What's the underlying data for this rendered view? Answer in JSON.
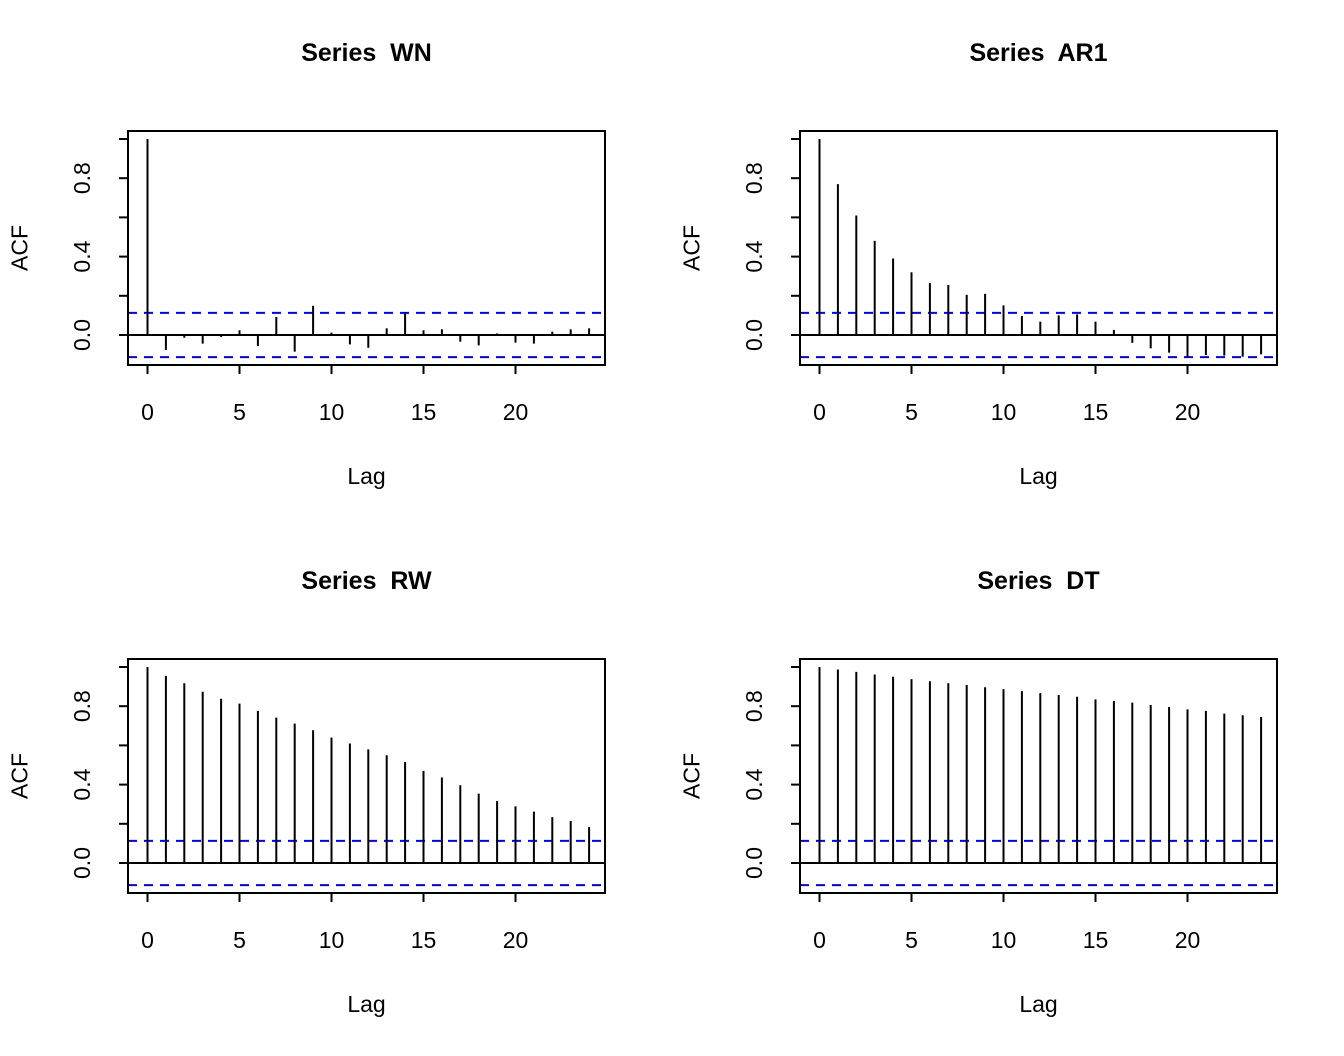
{
  "figure": {
    "background": "#ffffff",
    "bar_color": "#000000",
    "axis_color": "#000000",
    "conf_color": "#0000ff"
  },
  "chart_data": [
    {
      "type": "bar",
      "title": "Series  WN",
      "xlabel": "Lag",
      "ylabel": "ACF",
      "legend": "none",
      "grid": false,
      "x": [
        0,
        1,
        2,
        3,
        4,
        5,
        6,
        7,
        8,
        9,
        10,
        11,
        12,
        13,
        14,
        15,
        16,
        17,
        18,
        19,
        20,
        21,
        22,
        23,
        24
      ],
      "values": [
        1.0,
        -0.076,
        -0.014,
        -0.044,
        -0.01,
        0.024,
        -0.056,
        0.092,
        -0.085,
        0.149,
        0.012,
        -0.048,
        -0.065,
        0.034,
        0.114,
        0.024,
        0.029,
        -0.034,
        -0.053,
        0.008,
        -0.039,
        -0.044,
        0.017,
        0.029,
        0.034
      ],
      "conf_level_lines": [
        0.113,
        -0.113
      ],
      "xlim": [
        0,
        24
      ],
      "ylim": [
        -0.15,
        1.04
      ],
      "x_ticks": [
        {
          "v": 0,
          "label": "0"
        },
        {
          "v": 5,
          "label": "5"
        },
        {
          "v": 10,
          "label": "10"
        },
        {
          "v": 15,
          "label": "15"
        },
        {
          "v": 20,
          "label": "20"
        }
      ],
      "y_ticks": [
        {
          "v": 0.0,
          "label": "0.0"
        },
        {
          "v": 0.2,
          "label": ""
        },
        {
          "v": 0.4,
          "label": "0.4"
        },
        {
          "v": 0.6,
          "label": ""
        },
        {
          "v": 0.8,
          "label": "0.8"
        },
        {
          "v": 1.0,
          "label": ""
        }
      ]
    },
    {
      "type": "bar",
      "title": "Series  AR1",
      "xlabel": "Lag",
      "ylabel": "ACF",
      "legend": "none",
      "grid": false,
      "x": [
        0,
        1,
        2,
        3,
        4,
        5,
        6,
        7,
        8,
        9,
        10,
        11,
        12,
        13,
        14,
        15,
        16,
        17,
        18,
        19,
        20,
        21,
        22,
        23,
        24
      ],
      "values": [
        1.0,
        0.77,
        0.61,
        0.48,
        0.39,
        0.32,
        0.265,
        0.255,
        0.205,
        0.21,
        0.151,
        0.097,
        0.068,
        0.1,
        0.105,
        0.068,
        0.026,
        -0.04,
        -0.068,
        -0.09,
        -0.111,
        -0.102,
        -0.105,
        -0.111,
        -0.099
      ],
      "conf_level_lines": [
        0.113,
        -0.113
      ],
      "xlim": [
        0,
        24
      ],
      "ylim": [
        -0.15,
        1.04
      ],
      "x_ticks": [
        {
          "v": 0,
          "label": "0"
        },
        {
          "v": 5,
          "label": "5"
        },
        {
          "v": 10,
          "label": "10"
        },
        {
          "v": 15,
          "label": "15"
        },
        {
          "v": 20,
          "label": "20"
        }
      ],
      "y_ticks": [
        {
          "v": 0.0,
          "label": "0.0"
        },
        {
          "v": 0.2,
          "label": ""
        },
        {
          "v": 0.4,
          "label": "0.4"
        },
        {
          "v": 0.6,
          "label": ""
        },
        {
          "v": 0.8,
          "label": "0.8"
        },
        {
          "v": 1.0,
          "label": ""
        }
      ]
    },
    {
      "type": "bar",
      "title": "Series  RW",
      "xlabel": "Lag",
      "ylabel": "ACF",
      "legend": "none",
      "grid": false,
      "x": [
        0,
        1,
        2,
        3,
        4,
        5,
        6,
        7,
        8,
        9,
        10,
        11,
        12,
        13,
        14,
        15,
        16,
        17,
        18,
        19,
        20,
        21,
        22,
        23,
        24
      ],
      "values": [
        1.0,
        0.955,
        0.917,
        0.874,
        0.838,
        0.813,
        0.776,
        0.742,
        0.711,
        0.677,
        0.64,
        0.61,
        0.58,
        0.55,
        0.515,
        0.47,
        0.436,
        0.397,
        0.354,
        0.316,
        0.289,
        0.262,
        0.234,
        0.214,
        0.183
      ],
      "conf_level_lines": [
        0.113,
        -0.113
      ],
      "xlim": [
        0,
        24
      ],
      "ylim": [
        -0.15,
        1.04
      ],
      "x_ticks": [
        {
          "v": 0,
          "label": "0"
        },
        {
          "v": 5,
          "label": "5"
        },
        {
          "v": 10,
          "label": "10"
        },
        {
          "v": 15,
          "label": "15"
        },
        {
          "v": 20,
          "label": "20"
        }
      ],
      "y_ticks": [
        {
          "v": 0.0,
          "label": "0.0"
        },
        {
          "v": 0.2,
          "label": ""
        },
        {
          "v": 0.4,
          "label": "0.4"
        },
        {
          "v": 0.6,
          "label": ""
        },
        {
          "v": 0.8,
          "label": "0.8"
        },
        {
          "v": 1.0,
          "label": ""
        }
      ]
    },
    {
      "type": "bar",
      "title": "Series  DT",
      "xlabel": "Lag",
      "ylabel": "ACF",
      "legend": "none",
      "grid": false,
      "x": [
        0,
        1,
        2,
        3,
        4,
        5,
        6,
        7,
        8,
        9,
        10,
        11,
        12,
        13,
        14,
        15,
        16,
        17,
        18,
        19,
        20,
        21,
        22,
        23,
        24
      ],
      "values": [
        1.0,
        0.987,
        0.975,
        0.962,
        0.95,
        0.938,
        0.927,
        0.917,
        0.908,
        0.897,
        0.887,
        0.877,
        0.867,
        0.857,
        0.848,
        0.835,
        0.827,
        0.818,
        0.806,
        0.796,
        0.784,
        0.776,
        0.762,
        0.754,
        0.745
      ],
      "conf_level_lines": [
        0.113,
        -0.113
      ],
      "xlim": [
        0,
        24
      ],
      "ylim": [
        -0.15,
        1.04
      ],
      "x_ticks": [
        {
          "v": 0,
          "label": "0"
        },
        {
          "v": 5,
          "label": "5"
        },
        {
          "v": 10,
          "label": "10"
        },
        {
          "v": 15,
          "label": "15"
        },
        {
          "v": 20,
          "label": "20"
        }
      ],
      "y_ticks": [
        {
          "v": 0.0,
          "label": "0.0"
        },
        {
          "v": 0.2,
          "label": ""
        },
        {
          "v": 0.4,
          "label": "0.4"
        },
        {
          "v": 0.6,
          "label": ""
        },
        {
          "v": 0.8,
          "label": "0.8"
        },
        {
          "v": 1.0,
          "label": ""
        }
      ]
    }
  ]
}
